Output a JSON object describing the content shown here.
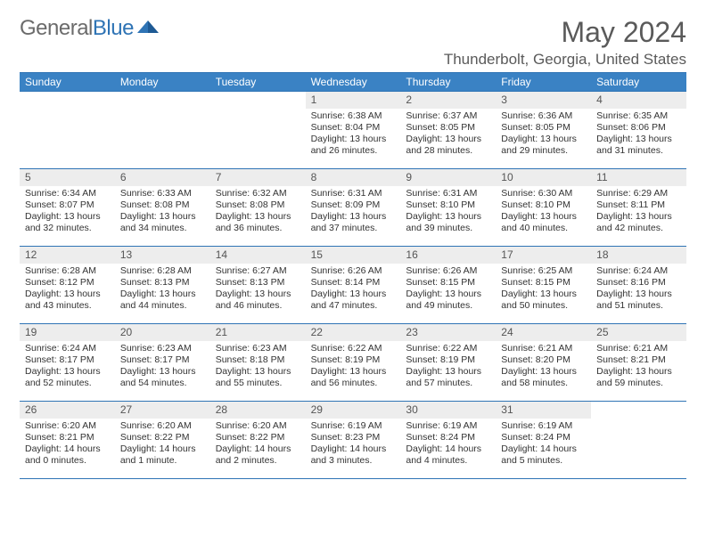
{
  "brand": {
    "part1": "General",
    "part2": "Blue"
  },
  "title": "May 2024",
  "location": "Thunderbolt, Georgia, United States",
  "colors": {
    "header_bg": "#3a82c4",
    "header_text": "#ffffff",
    "border": "#2f74b5",
    "daynum_bg": "#ededed",
    "text": "#333333",
    "title": "#5a5a5a"
  },
  "day_names": [
    "Sunday",
    "Monday",
    "Tuesday",
    "Wednesday",
    "Thursday",
    "Friday",
    "Saturday"
  ],
  "weeks": [
    [
      null,
      null,
      null,
      {
        "n": "1",
        "sr": "6:38 AM",
        "ss": "8:04 PM",
        "dl": "13 hours and 26 minutes."
      },
      {
        "n": "2",
        "sr": "6:37 AM",
        "ss": "8:05 PM",
        "dl": "13 hours and 28 minutes."
      },
      {
        "n": "3",
        "sr": "6:36 AM",
        "ss": "8:05 PM",
        "dl": "13 hours and 29 minutes."
      },
      {
        "n": "4",
        "sr": "6:35 AM",
        "ss": "8:06 PM",
        "dl": "13 hours and 31 minutes."
      }
    ],
    [
      {
        "n": "5",
        "sr": "6:34 AM",
        "ss": "8:07 PM",
        "dl": "13 hours and 32 minutes."
      },
      {
        "n": "6",
        "sr": "6:33 AM",
        "ss": "8:08 PM",
        "dl": "13 hours and 34 minutes."
      },
      {
        "n": "7",
        "sr": "6:32 AM",
        "ss": "8:08 PM",
        "dl": "13 hours and 36 minutes."
      },
      {
        "n": "8",
        "sr": "6:31 AM",
        "ss": "8:09 PM",
        "dl": "13 hours and 37 minutes."
      },
      {
        "n": "9",
        "sr": "6:31 AM",
        "ss": "8:10 PM",
        "dl": "13 hours and 39 minutes."
      },
      {
        "n": "10",
        "sr": "6:30 AM",
        "ss": "8:10 PM",
        "dl": "13 hours and 40 minutes."
      },
      {
        "n": "11",
        "sr": "6:29 AM",
        "ss": "8:11 PM",
        "dl": "13 hours and 42 minutes."
      }
    ],
    [
      {
        "n": "12",
        "sr": "6:28 AM",
        "ss": "8:12 PM",
        "dl": "13 hours and 43 minutes."
      },
      {
        "n": "13",
        "sr": "6:28 AM",
        "ss": "8:13 PM",
        "dl": "13 hours and 44 minutes."
      },
      {
        "n": "14",
        "sr": "6:27 AM",
        "ss": "8:13 PM",
        "dl": "13 hours and 46 minutes."
      },
      {
        "n": "15",
        "sr": "6:26 AM",
        "ss": "8:14 PM",
        "dl": "13 hours and 47 minutes."
      },
      {
        "n": "16",
        "sr": "6:26 AM",
        "ss": "8:15 PM",
        "dl": "13 hours and 49 minutes."
      },
      {
        "n": "17",
        "sr": "6:25 AM",
        "ss": "8:15 PM",
        "dl": "13 hours and 50 minutes."
      },
      {
        "n": "18",
        "sr": "6:24 AM",
        "ss": "8:16 PM",
        "dl": "13 hours and 51 minutes."
      }
    ],
    [
      {
        "n": "19",
        "sr": "6:24 AM",
        "ss": "8:17 PM",
        "dl": "13 hours and 52 minutes."
      },
      {
        "n": "20",
        "sr": "6:23 AM",
        "ss": "8:17 PM",
        "dl": "13 hours and 54 minutes."
      },
      {
        "n": "21",
        "sr": "6:23 AM",
        "ss": "8:18 PM",
        "dl": "13 hours and 55 minutes."
      },
      {
        "n": "22",
        "sr": "6:22 AM",
        "ss": "8:19 PM",
        "dl": "13 hours and 56 minutes."
      },
      {
        "n": "23",
        "sr": "6:22 AM",
        "ss": "8:19 PM",
        "dl": "13 hours and 57 minutes."
      },
      {
        "n": "24",
        "sr": "6:21 AM",
        "ss": "8:20 PM",
        "dl": "13 hours and 58 minutes."
      },
      {
        "n": "25",
        "sr": "6:21 AM",
        "ss": "8:21 PM",
        "dl": "13 hours and 59 minutes."
      }
    ],
    [
      {
        "n": "26",
        "sr": "6:20 AM",
        "ss": "8:21 PM",
        "dl": "14 hours and 0 minutes."
      },
      {
        "n": "27",
        "sr": "6:20 AM",
        "ss": "8:22 PM",
        "dl": "14 hours and 1 minute."
      },
      {
        "n": "28",
        "sr": "6:20 AM",
        "ss": "8:22 PM",
        "dl": "14 hours and 2 minutes."
      },
      {
        "n": "29",
        "sr": "6:19 AM",
        "ss": "8:23 PM",
        "dl": "14 hours and 3 minutes."
      },
      {
        "n": "30",
        "sr": "6:19 AM",
        "ss": "8:24 PM",
        "dl": "14 hours and 4 minutes."
      },
      {
        "n": "31",
        "sr": "6:19 AM",
        "ss": "8:24 PM",
        "dl": "14 hours and 5 minutes."
      },
      null
    ]
  ],
  "labels": {
    "sunrise": "Sunrise:",
    "sunset": "Sunset:",
    "daylight": "Daylight:"
  }
}
